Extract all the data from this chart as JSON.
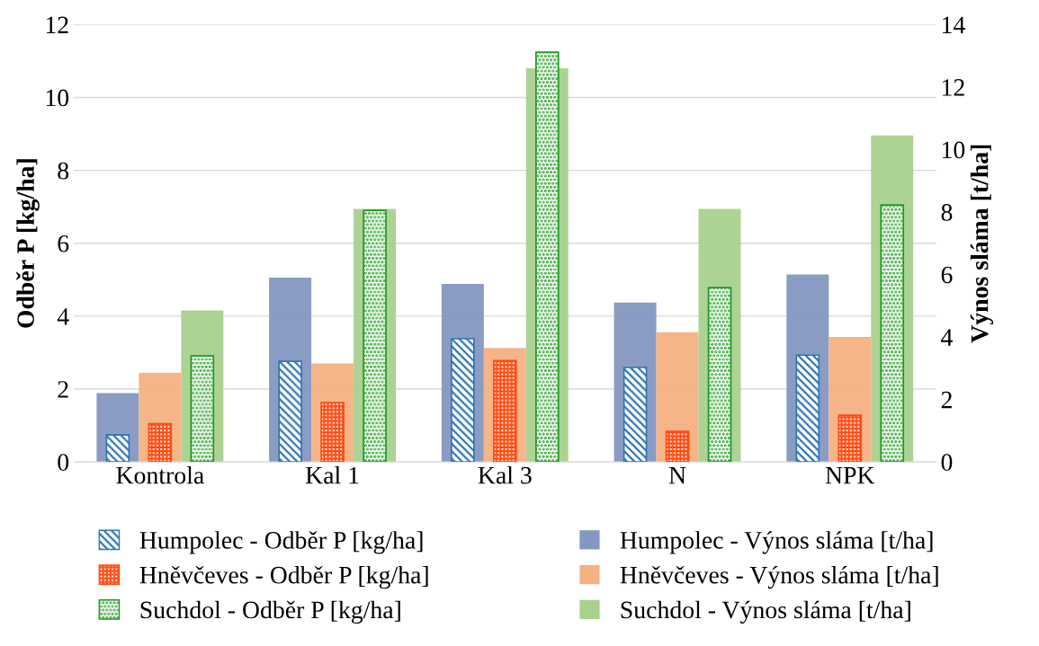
{
  "chart_data": {
    "type": "bar",
    "ylabel": "Odběr P [kg/ha]",
    "y2label": "Výnos sláma [t/ha]",
    "categories": [
      "Kontrola",
      "Kal 1",
      "Kal 3",
      "N",
      "NPK"
    ],
    "series": [
      {
        "name": "Humpolec - Výnos sláma [t/ha]",
        "color": "#8497c0",
        "axis": "y2",
        "values": [
          2.2,
          5.9,
          5.7,
          5.1,
          6.0
        ]
      },
      {
        "name": "Hněvčeves - Výnos sláma [t/ha]",
        "color": "#f4b183",
        "axis": "y2",
        "values": [
          2.85,
          3.15,
          3.65,
          4.15,
          4.0
        ]
      },
      {
        "name": "Suchdol - Výnos sláma [t/ha]",
        "color": "#a9d18e",
        "axis": "y2",
        "values": [
          4.85,
          8.1,
          12.6,
          8.1,
          10.45
        ]
      },
      {
        "name": "Humpolec - Odběr P [kg/ha]",
        "color": "#2e75b6",
        "axis": "y",
        "values": [
          0.74,
          2.76,
          3.38,
          2.59,
          2.93
        ]
      },
      {
        "name": "Hněvčeves - Odběr P [kg/ha]",
        "color": "#ff4b12",
        "axis": "y",
        "values": [
          1.05,
          1.63,
          2.78,
          0.84,
          1.28
        ]
      },
      {
        "name": "Suchdol - Odběr P [kg/ha]",
        "color": "#1f9a1f",
        "axis": "y",
        "values": [
          2.91,
          6.9,
          11.24,
          4.78,
          7.05
        ]
      }
    ],
    "ylim": [
      0,
      12
    ],
    "yticks": [
      0,
      2,
      4,
      6,
      8,
      10,
      12
    ],
    "y2lim": [
      0,
      14
    ],
    "y2ticks": [
      0,
      2,
      4,
      6,
      8,
      10,
      12,
      14
    ],
    "grid": "y",
    "legend": "bottom"
  }
}
